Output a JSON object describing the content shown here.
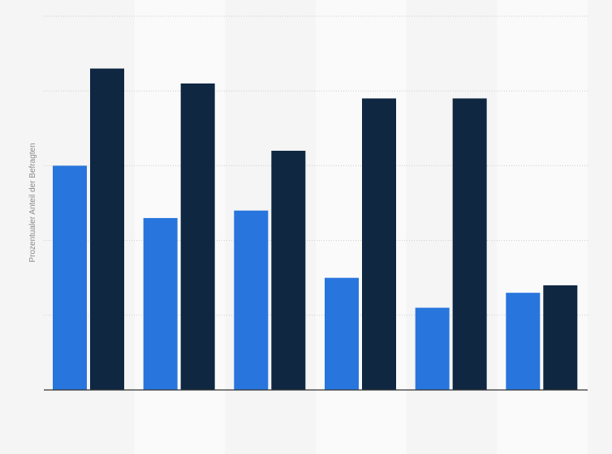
{
  "chart_data": {
    "type": "bar",
    "title": "",
    "xlabel": "",
    "ylabel": "Prozentualer Anteil der Befragten",
    "categories": [
      "",
      "",
      "",
      "",
      "",
      ""
    ],
    "series": [
      {
        "values": [
          30,
          23,
          24,
          15,
          11,
          13
        ]
      },
      {
        "values": [
          43,
          41,
          32,
          39,
          39,
          14
        ]
      }
    ],
    "ylim": [
      0,
      50
    ],
    "grid": true,
    "legend": "none",
    "colors": [
      "#2876dd",
      "#0f2741"
    ],
    "band_colors": [
      "#f5f5f5",
      "#fafafa"
    ],
    "axis_color": "#333333",
    "grid_color": "#cccccc"
  }
}
